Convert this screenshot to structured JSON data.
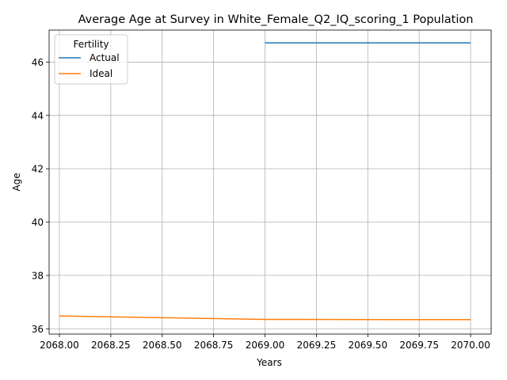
{
  "chart_data": {
    "type": "line",
    "title": "Average Age at Survey in White_Female_Q2_IQ_scoring_1 Population",
    "xlabel": "Years",
    "ylabel": "Age",
    "xlim": [
      2067.95,
      2070.1
    ],
    "ylim": [
      35.8,
      47.2
    ],
    "x_ticks": [
      2068.0,
      2068.25,
      2068.5,
      2068.75,
      2069.0,
      2069.25,
      2069.5,
      2069.75,
      2070.0
    ],
    "x_tick_labels": [
      "2068.00",
      "2068.25",
      "2068.50",
      "2068.75",
      "2069.00",
      "2069.25",
      "2069.50",
      "2069.75",
      "2070.00"
    ],
    "y_ticks": [
      36,
      38,
      40,
      42,
      44,
      46
    ],
    "y_tick_labels": [
      "36",
      "38",
      "40",
      "42",
      "44",
      "46"
    ],
    "grid": true,
    "legend": {
      "title": "Fertility",
      "placement": "top-left"
    },
    "series": [
      {
        "name": "Actual",
        "color": "#1f77b4",
        "x": [
          2069.0,
          2070.0
        ],
        "y": [
          46.72,
          46.72
        ]
      },
      {
        "name": "Ideal",
        "color": "#ff7f0e",
        "x": [
          2068.0,
          2069.0,
          2070.0
        ],
        "y": [
          36.48,
          36.35,
          36.34
        ]
      }
    ]
  }
}
